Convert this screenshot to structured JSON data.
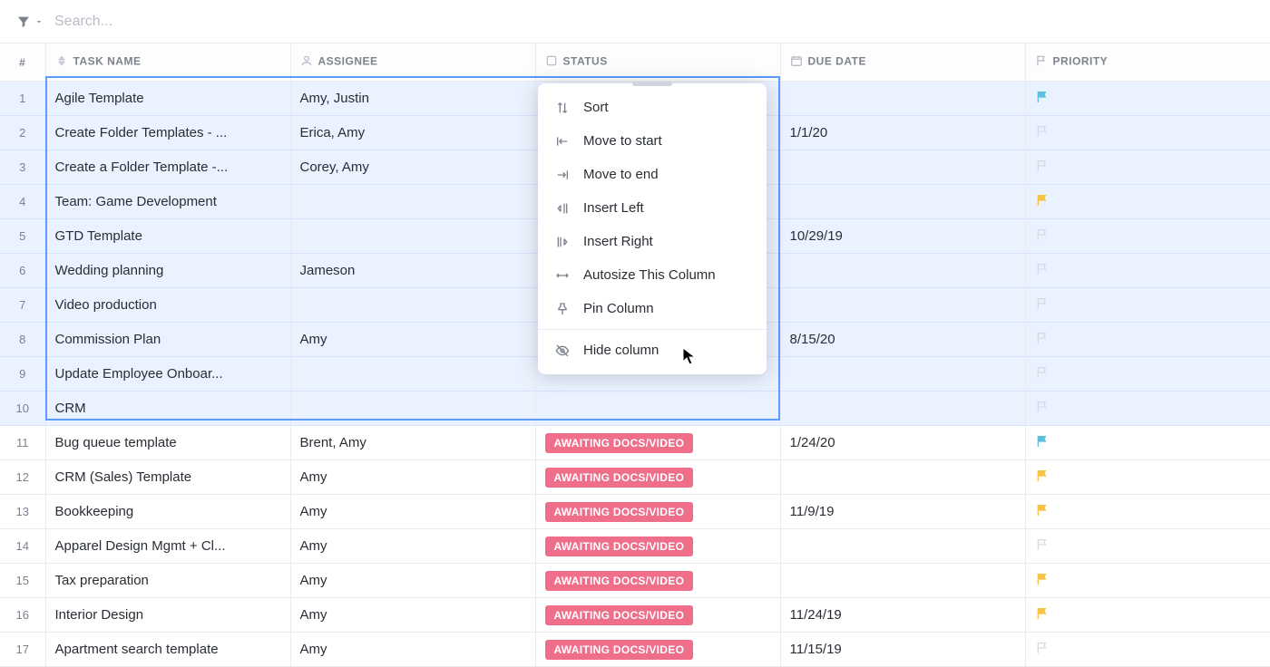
{
  "toolbar": {
    "search_placeholder": "Search..."
  },
  "columns": {
    "num": "#",
    "task_name": "TASK NAME",
    "assignee": "ASSIGNEE",
    "status": "STATUS",
    "due_date": "DUE DATE",
    "priority": "PRIORITY",
    "header_icon_color": "#b0b6c3"
  },
  "flag_colors": {
    "blue": "#5bc0de",
    "yellow": "#f6c344",
    "gray": "#d8dbe3"
  },
  "status_pill": {
    "awaiting": {
      "label": "AWAITING DOCS/VIDEO",
      "bg": "#ef6e8a",
      "fg": "#ffffff"
    }
  },
  "rows": [
    {
      "n": "1",
      "task": "Agile Template",
      "assignee": "Amy, Justin",
      "status": null,
      "due": "",
      "flag": "blue",
      "selected": true
    },
    {
      "n": "2",
      "task": "Create Folder Templates - ...",
      "assignee": "Erica, Amy",
      "status": null,
      "due": "1/1/20",
      "flag": "gray",
      "selected": true
    },
    {
      "n": "3",
      "task": "Create a Folder Template -...",
      "assignee": "Corey, Amy",
      "status": null,
      "due": "",
      "flag": "gray",
      "selected": true
    },
    {
      "n": "4",
      "task": "Team: Game Development",
      "assignee": "",
      "status": null,
      "due": "",
      "flag": "yellow",
      "selected": true
    },
    {
      "n": "5",
      "task": "GTD Template",
      "assignee": "",
      "status": null,
      "due": "10/29/19",
      "flag": "gray",
      "selected": true
    },
    {
      "n": "6",
      "task": "Wedding planning",
      "assignee": "Jameson",
      "status": null,
      "due": "",
      "flag": "gray",
      "selected": true
    },
    {
      "n": "7",
      "task": "Video production",
      "assignee": "",
      "status": null,
      "due": "",
      "flag": "gray",
      "selected": true
    },
    {
      "n": "8",
      "task": "Commission Plan",
      "assignee": "Amy",
      "status": null,
      "due": "8/15/20",
      "flag": "gray",
      "selected": true
    },
    {
      "n": "9",
      "task": "Update Employee Onboar...",
      "assignee": "",
      "status": null,
      "due": "",
      "flag": "gray",
      "selected": true
    },
    {
      "n": "10",
      "task": "CRM",
      "assignee": "",
      "status": null,
      "due": "",
      "flag": "gray",
      "selected": true
    },
    {
      "n": "11",
      "task": "Bug queue template",
      "assignee": "Brent, Amy",
      "status": "awaiting",
      "due": "1/24/20",
      "flag": "blue",
      "selected": false
    },
    {
      "n": "12",
      "task": "CRM (Sales) Template",
      "assignee": "Amy",
      "status": "awaiting",
      "due": "",
      "flag": "yellow",
      "selected": false
    },
    {
      "n": "13",
      "task": "Bookkeeping",
      "assignee": "Amy",
      "status": "awaiting",
      "due": "11/9/19",
      "flag": "yellow",
      "selected": false
    },
    {
      "n": "14",
      "task": "Apparel Design Mgmt + Cl...",
      "assignee": "Amy",
      "status": "awaiting",
      "due": "",
      "flag": "gray",
      "selected": false
    },
    {
      "n": "15",
      "task": "Tax preparation",
      "assignee": "Amy",
      "status": "awaiting",
      "due": "",
      "flag": "yellow",
      "selected": false
    },
    {
      "n": "16",
      "task": "Interior Design",
      "assignee": "Amy",
      "status": "awaiting",
      "due": "11/24/19",
      "flag": "yellow",
      "selected": false
    },
    {
      "n": "17",
      "task": "Apartment search template",
      "assignee": "Amy",
      "status": "awaiting",
      "due": "11/15/19",
      "flag": "gray",
      "selected": false
    }
  ],
  "context_menu": {
    "sort": "Sort",
    "move_start": "Move to start",
    "move_end": "Move to end",
    "insert_left": "Insert Left",
    "insert_right": "Insert Right",
    "autosize": "Autosize This Column",
    "pin": "Pin Column",
    "hide": "Hide column"
  }
}
